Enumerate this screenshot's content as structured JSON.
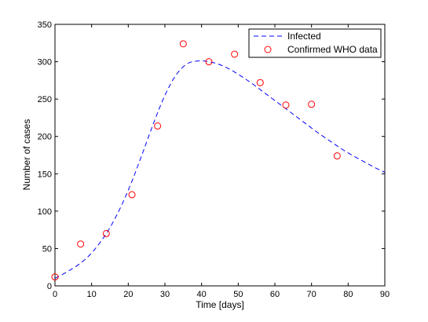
{
  "chart_data": {
    "type": "line",
    "title": "",
    "xlabel": "Time [days]",
    "ylabel": "Number of cases",
    "xlim": [
      0,
      90
    ],
    "ylim": [
      0,
      350
    ],
    "xticks": [
      0,
      10,
      20,
      30,
      40,
      50,
      60,
      70,
      80,
      90
    ],
    "yticks": [
      0,
      50,
      100,
      150,
      200,
      250,
      300,
      350
    ],
    "grid": false,
    "legend_position": "top-right",
    "series": [
      {
        "name": "Infected",
        "style": "dashed-line",
        "color": "#0000ff",
        "x": [
          0,
          3,
          6,
          9,
          12,
          15,
          18,
          21,
          24,
          27,
          30,
          33,
          36,
          39,
          42,
          45,
          48,
          51,
          54,
          57,
          60,
          63,
          66,
          69,
          72,
          75,
          78,
          81,
          84,
          87,
          90
        ],
        "y": [
          10,
          18,
          27,
          39,
          56,
          78,
          106,
          140,
          179,
          219,
          255,
          282,
          297,
          301,
          300,
          296,
          289,
          280,
          270,
          259,
          248,
          237,
          226,
          215,
          204,
          194,
          184,
          175,
          167,
          159,
          152
        ]
      },
      {
        "name": "Confirmed WHO data",
        "style": "circle-markers",
        "color": "#ff0000",
        "x": [
          0,
          7,
          14,
          21,
          28,
          35,
          42,
          49,
          56,
          63,
          70,
          77
        ],
        "y": [
          12,
          56,
          70,
          122,
          214,
          324,
          300,
          310,
          272,
          242,
          243,
          174
        ]
      }
    ]
  }
}
